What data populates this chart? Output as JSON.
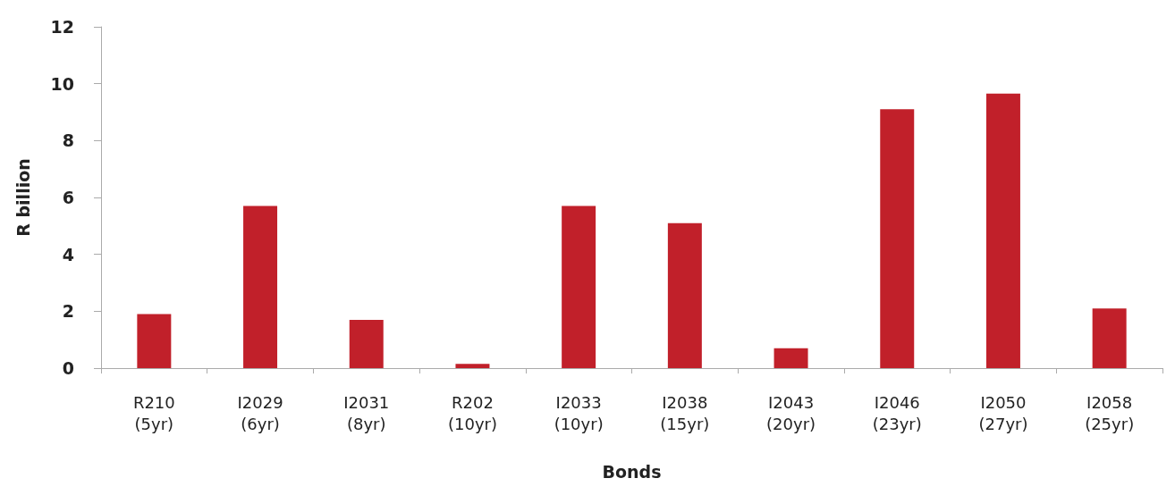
{
  "chart_data": {
    "type": "bar",
    "xlabel": "Bonds",
    "ylabel": "R billion",
    "categories": [
      "R210\n(5yr)",
      "I2029\n(6yr)",
      "I2031\n(8yr)",
      "R202\n(10yr)",
      "I2033\n(10yr)",
      "I2038\n(15yr)",
      "I2043\n(20yr)",
      "I2046\n(23yr)",
      "I2050\n(27yr)",
      "I2058\n(25yr)"
    ],
    "values": [
      1.9,
      5.7,
      1.7,
      0.15,
      5.7,
      5.1,
      0.7,
      9.1,
      9.65,
      2.1
    ],
    "color": "#c1202a",
    "ylim": [
      0,
      12
    ],
    "yticks": [
      0,
      2,
      4,
      6,
      8,
      10,
      12
    ],
    "grid": false
  }
}
